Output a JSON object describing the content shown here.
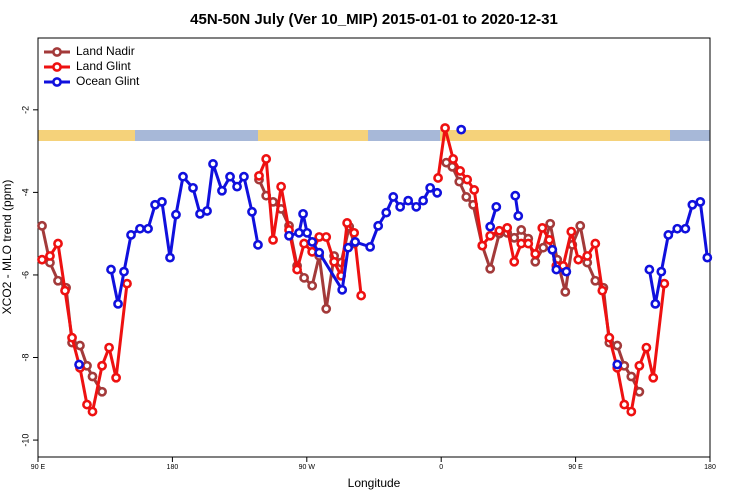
{
  "chart_data": {
    "type": "line",
    "title": "45N-50N July (Ver 10_MIP)   2015-01-01 to 2020-12-31",
    "xlabel": "Longitude",
    "ylabel": "XCO2 - MLO trend (ppm)",
    "xlim": [
      90,
      540
    ],
    "ylim": [
      -10.41,
      -0.26
    ],
    "xticks": [
      {
        "value": 90,
        "label": "90 E"
      },
      {
        "value": 180,
        "label": "180"
      },
      {
        "value": 270,
        "label": "90 W"
      },
      {
        "value": 360,
        "label": "0"
      },
      {
        "value": 450,
        "label": "90 E"
      },
      {
        "value": 540,
        "label": "180"
      }
    ],
    "yticks": [
      -2,
      -4,
      -6,
      -8,
      -10
    ],
    "legend": "top-left",
    "series": [
      {
        "name": "Land Nadir",
        "color": "#a33a3a",
        "x": [
          92.7,
          98.0,
          103.4,
          108.8,
          112.8,
          118.1,
          122.8,
          126.5,
          132.9,
          null,
          238.0,
          242.8,
          247.4,
          252.8,
          258.1,
          263.5,
          268.2,
          273.6,
          278.3,
          283.0,
          288.3,
          293.0,
          298.4,
          301.7,
          null,
          363.4,
          367.4,
          372.1,
          376.8,
          381.4,
          387.5,
          392.8,
          398.9,
          404.2,
          408.9,
          413.6,
          418.3,
          423.0,
          428.3,
          433.0,
          437.7,
          443.1,
          447.8,
          453.1,
          457.8,
          463.2,
          468.6,
          472.6,
          477.9,
          482.6,
          487.3,
          492.7
        ],
        "values": [
          -4.81,
          -5.7,
          -6.14,
          -6.31,
          -7.64,
          -7.71,
          -8.2,
          -8.46,
          -8.83,
          null,
          -3.69,
          -4.08,
          -4.23,
          -4.4,
          -4.81,
          -5.78,
          -6.07,
          -6.26,
          -5.54,
          -6.82,
          -5.54,
          -5.7,
          -4.83,
          -5.24,
          null,
          -3.28,
          -3.38,
          -3.74,
          -4.11,
          -4.3,
          -5.29,
          -5.85,
          -5.0,
          -4.98,
          -5.1,
          -4.91,
          -5.12,
          -5.68,
          -5.34,
          -4.76,
          -5.63,
          -6.41,
          -5.27,
          -4.81,
          -5.7,
          -6.14,
          -6.31,
          -7.64,
          -7.71,
          -8.2,
          -8.46,
          -8.83
        ]
      },
      {
        "name": "Land Glint",
        "color": "#ee1111",
        "x": [
          92.7,
          98.0,
          103.4,
          108.1,
          112.8,
          118.1,
          122.8,
          126.5,
          132.9,
          137.6,
          142.3,
          149.6,
          null,
          238.0,
          242.8,
          247.4,
          252.8,
          258.1,
          263.5,
          268.2,
          273.6,
          278.3,
          283.0,
          288.3,
          293.0,
          297.0,
          301.7,
          306.4,
          null,
          357.9,
          362.6,
          368.0,
          372.7,
          377.4,
          382.1,
          387.5,
          392.8,
          398.9,
          404.2,
          408.9,
          413.6,
          418.3,
          423.0,
          427.7,
          432.4,
          437.1,
          441.7,
          447.1,
          451.8,
          457.8,
          463.2,
          467.9,
          472.6,
          477.9,
          482.6,
          487.3,
          492.7,
          497.4,
          502.0,
          509.4
        ],
        "values": [
          -5.63,
          -5.54,
          -5.24,
          -6.38,
          -7.52,
          -8.25,
          -9.14,
          -9.31,
          -8.2,
          -7.76,
          -8.49,
          -6.21,
          null,
          -3.6,
          -3.19,
          -5.15,
          -3.86,
          -4.91,
          -5.87,
          -5.24,
          -5.44,
          -5.08,
          -5.08,
          -5.68,
          -6.02,
          -4.74,
          -4.98,
          -6.5,
          null,
          -3.65,
          -2.44,
          -3.19,
          -3.48,
          -3.69,
          -3.94,
          -5.29,
          -5.05,
          -4.93,
          -4.86,
          -5.68,
          -5.24,
          -5.24,
          -5.49,
          -4.86,
          -5.15,
          -5.78,
          -5.78,
          -4.95,
          -5.63,
          -5.54,
          -5.24,
          -6.38,
          -7.52,
          -8.25,
          -9.14,
          -9.31,
          -8.2,
          -7.76,
          -8.49,
          -6.21
        ]
      },
      {
        "name": "Ocean Glint",
        "color": "#1010dd",
        "x": [
          117.5,
          null,
          138.9,
          143.6,
          147.6,
          152.3,
          158.3,
          163.7,
          168.4,
          173.0,
          178.4,
          182.4,
          187.1,
          193.8,
          198.5,
          203.2,
          207.2,
          213.2,
          218.6,
          223.3,
          227.9,
          233.3,
          237.3,
          null,
          258.1,
          264.8,
          267.5,
          270.2,
          273.6,
          278.3,
          293.7,
          297.7,
          302.4,
          312.4,
          317.8,
          323.2,
          327.9,
          332.5,
          337.9,
          343.3,
          347.9,
          352.6,
          357.3,
          null,
          373.4,
          null,
          392.8,
          396.9,
          null,
          409.6,
          411.6,
          null,
          434.4,
          437.1,
          443.8,
          null,
          477.9,
          null,
          499.4,
          503.4,
          507.4,
          512.1,
          518.1,
          523.5,
          528.2,
          533.5,
          538.2
        ],
        "values": [
          -8.17,
          null,
          -5.87,
          -6.7,
          -5.92,
          -5.03,
          -4.88,
          -4.88,
          -4.3,
          -4.23,
          -5.58,
          -4.54,
          -3.62,
          -3.89,
          -4.52,
          -4.45,
          -3.31,
          -3.96,
          -3.62,
          -3.86,
          -3.62,
          -4.47,
          -5.27,
          null,
          -5.05,
          -4.98,
          -4.52,
          -4.98,
          -5.2,
          -5.46,
          -6.36,
          -5.34,
          -5.2,
          -5.32,
          -4.81,
          -4.49,
          -4.11,
          -4.35,
          -4.2,
          -4.35,
          -4.2,
          -3.89,
          -4.01,
          null,
          -2.48,
          null,
          -4.83,
          -4.35,
          null,
          -4.08,
          -4.57,
          null,
          -5.39,
          -5.87,
          -5.92,
          null,
          -8.17,
          null,
          -5.87,
          -6.7,
          -5.92,
          -5.03,
          -4.88,
          -4.88,
          -4.3,
          -4.23,
          -5.58
        ]
      }
    ]
  }
}
